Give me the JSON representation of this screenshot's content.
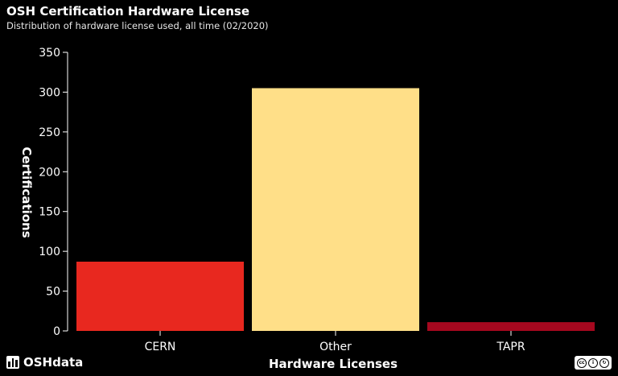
{
  "header": {
    "title": "OSH Certification Hardware License",
    "subtitle": "Distribution of hardware license used, all time (02/2020)"
  },
  "brand": {
    "name": "OSHdata"
  },
  "license_icon": "creative-commons-by-sa-icon",
  "chart_data": {
    "type": "bar",
    "title": "OSH Certification Hardware License",
    "subtitle": "Distribution of hardware license used, all time (02/2020)",
    "xlabel": "Hardware Licenses",
    "ylabel": "Certifications",
    "categories": [
      "CERN",
      "Other",
      "TAPR"
    ],
    "values": [
      87,
      305,
      11
    ],
    "colors": [
      "#e8281f",
      "#ffdf88",
      "#a6081f"
    ],
    "ylim": [
      0,
      350
    ],
    "yticks": [
      0,
      50,
      100,
      150,
      200,
      250,
      300,
      350
    ],
    "grid": false,
    "legend": "none"
  }
}
